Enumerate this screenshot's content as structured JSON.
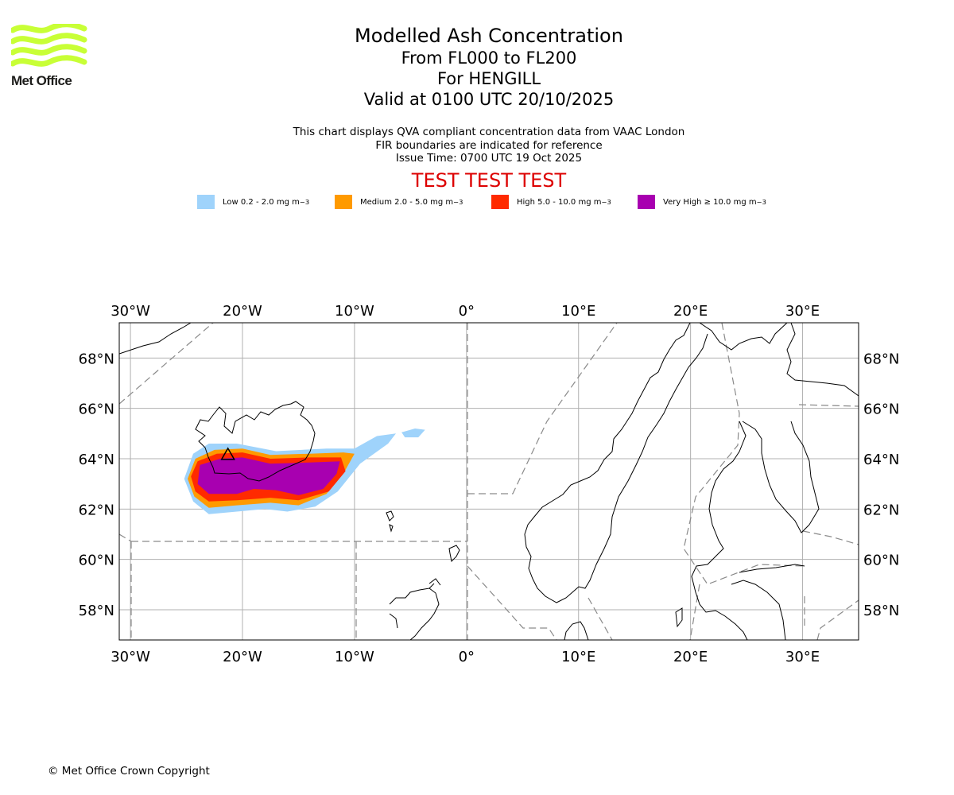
{
  "logo": {
    "text": "Met Office",
    "color": "#c8ff36"
  },
  "title": {
    "main": "Modelled Ash Concentration",
    "levels": "From FL000 to FL200",
    "volcano": "For HENGILL",
    "valid": "Valid at 0100 UTC 20/10/2025"
  },
  "subtitle": {
    "line1": "This chart displays QVA compliant concentration data from VAAC London",
    "line2": "FIR boundaries are indicated for reference",
    "line3": "Issue Time: 0700 UTC 19 Oct 2025"
  },
  "test_banner": "TEST TEST TEST",
  "legend": [
    {
      "label": "Low 0.2 - 2.0 mg m",
      "color": "#9fd3fb"
    },
    {
      "label": "Medium 2.0 - 5.0 mg m",
      "color": "#ff9a00"
    },
    {
      "label": "High 5.0 - 10.0 mg m",
      "color": "#ff2a00"
    },
    {
      "label": "Very High ≥ 10.0 mg m",
      "color": "#a800b0"
    }
  ],
  "legend_unit_exp": "−3",
  "map": {
    "lon_range": [
      -31,
      35
    ],
    "lat_range": [
      56.8,
      69.4
    ],
    "lon_ticks": [
      {
        "v": -30,
        "label": "30°W"
      },
      {
        "v": -20,
        "label": "20°W"
      },
      {
        "v": -10,
        "label": "10°W"
      },
      {
        "v": 0,
        "label": "0°"
      },
      {
        "v": 10,
        "label": "10°E"
      },
      {
        "v": 20,
        "label": "20°E"
      },
      {
        "v": 30,
        "label": "30°E"
      }
    ],
    "lat_ticks": [
      {
        "v": 68,
        "label": "68°N"
      },
      {
        "v": 66,
        "label": "66°N"
      },
      {
        "v": 64,
        "label": "64°N"
      },
      {
        "v": 62,
        "label": "62°N"
      },
      {
        "v": 60,
        "label": "60°N"
      },
      {
        "v": 58,
        "label": "58°N"
      }
    ],
    "ash_levels": [
      {
        "level": "low",
        "color": "#9fd3fb",
        "polygon": [
          [
            -24.4,
            64.2
          ],
          [
            -23,
            64.6
          ],
          [
            -20.5,
            64.6
          ],
          [
            -17,
            64.3
          ],
          [
            -12.5,
            64.4
          ],
          [
            -10,
            64.4
          ],
          [
            -8,
            64.9
          ],
          [
            -6.3,
            65.0
          ],
          [
            -7,
            64.6
          ],
          [
            -9.5,
            63.8
          ],
          [
            -11.5,
            62.7
          ],
          [
            -13.5,
            62.1
          ],
          [
            -16,
            61.9
          ],
          [
            -18,
            62.0
          ],
          [
            -20.5,
            61.9
          ],
          [
            -23,
            61.8
          ],
          [
            -24.4,
            62.3
          ],
          [
            -25.2,
            63.2
          ]
        ]
      },
      {
        "level": "low",
        "color": "#9fd3fb",
        "polygon": [
          [
            -5.8,
            65.05
          ],
          [
            -4.6,
            65.2
          ],
          [
            -3.7,
            65.15
          ],
          [
            -4.3,
            64.85
          ],
          [
            -5.5,
            64.85
          ]
        ]
      },
      {
        "level": "medium",
        "color": "#ff9a00",
        "polygon": [
          [
            -24.2,
            64.0
          ],
          [
            -22.5,
            64.35
          ],
          [
            -20,
            64.4
          ],
          [
            -17.5,
            64.15
          ],
          [
            -14,
            64.2
          ],
          [
            -11,
            64.25
          ],
          [
            -10,
            64.2
          ],
          [
            -11,
            63.4
          ],
          [
            -12.5,
            62.6
          ],
          [
            -15,
            62.15
          ],
          [
            -17.5,
            62.25
          ],
          [
            -20.5,
            62.15
          ],
          [
            -23,
            62.05
          ],
          [
            -24.3,
            62.5
          ],
          [
            -24.9,
            63.2
          ]
        ]
      },
      {
        "level": "high",
        "color": "#ff2a00",
        "polygon": [
          [
            -24,
            63.9
          ],
          [
            -22.3,
            64.2
          ],
          [
            -20,
            64.25
          ],
          [
            -17.5,
            64.0
          ],
          [
            -14,
            64.05
          ],
          [
            -11.2,
            64.05
          ],
          [
            -10.8,
            63.5
          ],
          [
            -12.3,
            62.7
          ],
          [
            -15,
            62.35
          ],
          [
            -17.5,
            62.45
          ],
          [
            -20.5,
            62.35
          ],
          [
            -23,
            62.3
          ],
          [
            -24.2,
            62.7
          ],
          [
            -24.6,
            63.3
          ]
        ]
      },
      {
        "level": "very_high",
        "color": "#a800b0",
        "polygon": [
          [
            -23.8,
            63.75
          ],
          [
            -22,
            64.0
          ],
          [
            -20,
            64.05
          ],
          [
            -17.5,
            63.8
          ],
          [
            -14,
            63.85
          ],
          [
            -11.3,
            63.9
          ],
          [
            -11.6,
            63.4
          ],
          [
            -12.8,
            62.8
          ],
          [
            -15,
            62.55
          ],
          [
            -17,
            62.75
          ],
          [
            -19,
            62.8
          ],
          [
            -20.5,
            62.6
          ],
          [
            -23,
            62.6
          ],
          [
            -24,
            63.0
          ]
        ]
      }
    ]
  },
  "copyright": "© Met Office Crown Copyright"
}
